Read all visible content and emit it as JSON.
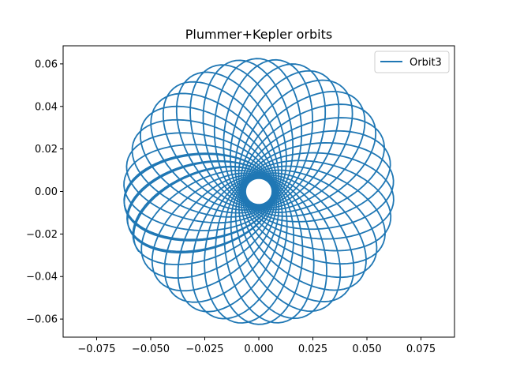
{
  "chart_data": {
    "type": "line",
    "title": "Plummer+Kepler orbits",
    "xlabel": "",
    "ylabel": "",
    "xlim": [
      -0.0905,
      0.0905
    ],
    "ylim": [
      -0.0685,
      0.0685
    ],
    "xticks": [
      -0.075,
      -0.05,
      -0.025,
      0.0,
      0.025,
      0.05,
      0.075
    ],
    "xtick_labels": [
      "−0.075",
      "−0.050",
      "−0.025",
      "0.000",
      "0.025",
      "0.050",
      "0.075"
    ],
    "yticks": [
      -0.06,
      -0.04,
      -0.02,
      0.0,
      0.02,
      0.04,
      0.06
    ],
    "ytick_labels": [
      "−0.06",
      "−0.04",
      "−0.02",
      "0.00",
      "0.02",
      "0.04",
      "0.06"
    ],
    "grid": false,
    "legend_position": "top-right",
    "series": [
      {
        "name": "Orbit3",
        "color": "#1f77b4",
        "orbit": {
          "apocenter": 0.0625,
          "pericenter": 0.0062,
          "start_point": [
            0.0625,
            0.0
          ],
          "start_angle_deg": 0,
          "end_point": [
            0.046,
            -0.042
          ],
          "precession_deg_per_orbit": 9.5,
          "num_orbits": 40,
          "direction": "counterclockwise"
        }
      }
    ]
  }
}
